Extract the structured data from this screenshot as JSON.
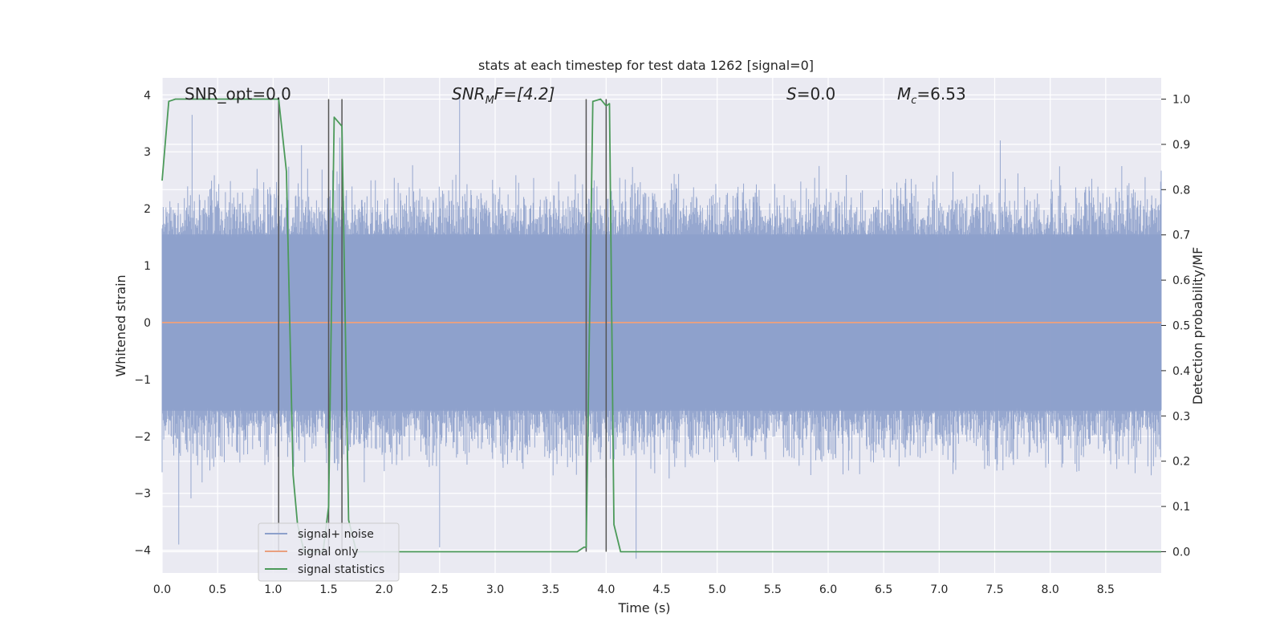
{
  "chart_data": {
    "type": "line",
    "title": "stats at each timestep for test data 1262 [signal=0]",
    "xlabel": "Time (s)",
    "ylabel": "Whitened strain",
    "y2label": "Detection probability/MF",
    "xlim": [
      0.0,
      9.0
    ],
    "ylim": [
      -4.4,
      4.3
    ],
    "y2lim": [
      -0.047,
      1.047
    ],
    "xticks": [
      "0.0",
      "0.5",
      "1.0",
      "1.5",
      "2.0",
      "2.5",
      "3.0",
      "3.5",
      "4.0",
      "4.5",
      "5.0",
      "5.5",
      "6.0",
      "6.5",
      "7.0",
      "7.5",
      "8.0",
      "8.5"
    ],
    "yticks": [
      "4",
      "3",
      "2",
      "1",
      "0",
      "−1",
      "−2",
      "−3",
      "−4"
    ],
    "y2ticks": [
      "1.0",
      "0.9",
      "0.8",
      "0.7",
      "0.6",
      "0.5",
      "0.4",
      "0.3",
      "0.2",
      "0.1",
      "0.0"
    ],
    "grid": true,
    "legend_position": "lower-left",
    "annotations": {
      "snr_opt": "SNR_opt=0.0",
      "snr_mf_sym": "SNR",
      "snr_mf_sub": "M",
      "snr_mf_rest": "F=[4.2]",
      "s_sym": "S",
      "s_rest": "=0.0",
      "mc_sym": "M",
      "mc_sub": "c",
      "mc_rest": "=6.53"
    },
    "colors": {
      "background": "#eaeaf2",
      "grid": "#ffffff",
      "noise": "#8da0cb",
      "signal": "#e9a07f",
      "statistics": "#4c9a5a",
      "vlines": "#555555"
    },
    "series": [
      {
        "name": "signal+ noise",
        "kind": "noise-band",
        "band_quantiles": {
          "core": [
            -1.55,
            1.55
          ],
          "spikes_max": 3.7,
          "spikes_min": -4.0
        },
        "notable_spikes": [
          [
            0.27,
            3.65
          ],
          [
            2.68,
            3.95
          ],
          [
            0.15,
            -3.9
          ],
          [
            2.5,
            -3.95
          ],
          [
            4.27,
            -4.15
          ],
          [
            1.6,
            3.25
          ],
          [
            7.55,
            3.2
          ]
        ]
      },
      {
        "name": "signal only",
        "kind": "line",
        "x": [
          0.0,
          9.0
        ],
        "y": [
          0.0,
          0.0
        ]
      },
      {
        "name": "signal statistics",
        "kind": "line",
        "axis": "right",
        "x": [
          0.0,
          0.06,
          0.12,
          0.6,
          1.0,
          1.05,
          1.12,
          1.18,
          1.22,
          1.28,
          1.45,
          1.5,
          1.55,
          1.62,
          1.68,
          1.75,
          2.0,
          3.0,
          3.74,
          3.8,
          3.82,
          3.88,
          3.95,
          4.0,
          4.03,
          4.07,
          4.13,
          4.3,
          5.0,
          6.0,
          7.0,
          8.0,
          9.0
        ],
        "y": [
          0.82,
          0.995,
          1.0,
          1.0,
          1.0,
          1.0,
          0.84,
          0.17,
          0.06,
          0.0,
          0.0,
          0.1,
          0.96,
          0.94,
          0.07,
          0.0,
          0.0,
          0.0,
          0.0,
          0.01,
          0.01,
          0.995,
          1.0,
          0.985,
          0.99,
          0.06,
          0.0,
          0.0,
          0.0,
          0.0,
          0.0,
          0.0,
          0.0
        ]
      }
    ],
    "vlines_x": [
      1.05,
      1.5,
      1.62,
      3.82,
      4.0
    ]
  }
}
